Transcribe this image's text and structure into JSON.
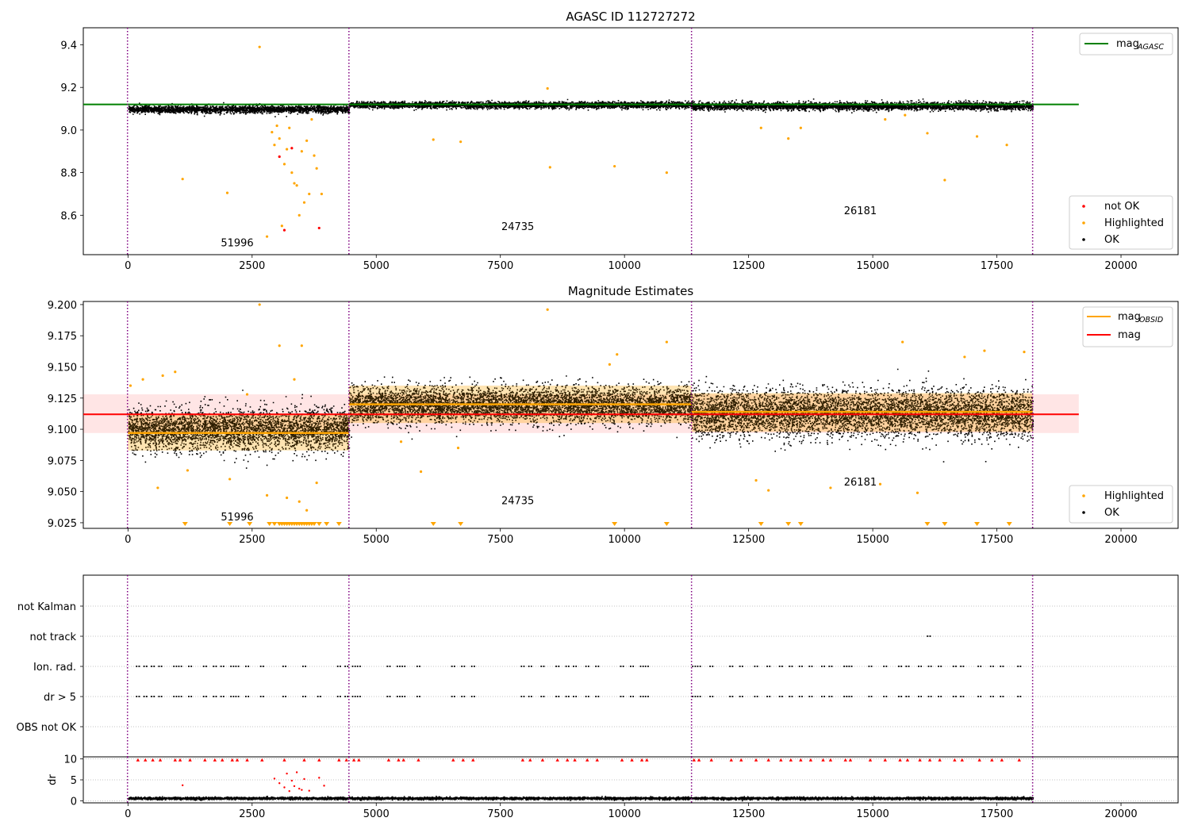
{
  "chart_data": [
    {
      "type": "scatter",
      "title": "AGASC ID 112727272",
      "xlim": [
        -900,
        21150
      ],
      "ylim": [
        8.415,
        9.48
      ],
      "xticks": [
        0,
        2500,
        5000,
        7500,
        10000,
        12500,
        15000,
        17500,
        20000
      ],
      "xtick_labels": [
        "0",
        "2500",
        "5000",
        "7500",
        "10000",
        "12500",
        "15000",
        "17500",
        "20000"
      ],
      "yticks": [
        8.6,
        8.8,
        9.0,
        9.2,
        9.4
      ],
      "ytick_labels": [
        "8.6",
        "8.8",
        "9.0",
        "9.2",
        "9.4"
      ],
      "obs_boundaries": [
        -10,
        4450,
        11350,
        18220
      ],
      "obs_labels": [
        {
          "text": "51996",
          "x": 2200,
          "y": 8.455
        },
        {
          "text": "24735",
          "x": 7850,
          "y": 8.53
        },
        {
          "text": "26181",
          "x": 14750,
          "y": 8.605
        }
      ],
      "reference_line": {
        "name": "mag_AGASC",
        "y": 9.12,
        "x_range": [
          -900,
          19150
        ],
        "color": "#008000"
      },
      "ok_bands": [
        {
          "x_range": [
            0,
            4450
          ],
          "center": 9.1,
          "spread": 0.015
        },
        {
          "x_range": [
            4450,
            11350
          ],
          "center": 9.12,
          "spread": 0.013
        },
        {
          "x_range": [
            11350,
            18220
          ],
          "center": 9.115,
          "spread": 0.016
        }
      ],
      "highlighted_points": [
        [
          1100,
          8.77
        ],
        [
          2000,
          8.705
        ],
        [
          2650,
          9.39
        ],
        [
          2800,
          8.5
        ],
        [
          2900,
          8.99
        ],
        [
          2950,
          8.93
        ],
        [
          3000,
          9.02
        ],
        [
          3050,
          8.96
        ],
        [
          3100,
          8.55
        ],
        [
          3150,
          8.84
        ],
        [
          3200,
          8.91
        ],
        [
          3250,
          9.01
        ],
        [
          3300,
          8.8
        ],
        [
          3350,
          8.75
        ],
        [
          3400,
          8.74
        ],
        [
          3450,
          8.6
        ],
        [
          3500,
          8.9
        ],
        [
          3550,
          8.66
        ],
        [
          3600,
          8.95
        ],
        [
          3650,
          8.7
        ],
        [
          3700,
          9.05
        ],
        [
          3750,
          8.88
        ],
        [
          3800,
          8.82
        ],
        [
          3900,
          8.7
        ],
        [
          6150,
          8.955
        ],
        [
          6700,
          8.945
        ],
        [
          8450,
          9.195
        ],
        [
          8500,
          8.825
        ],
        [
          9800,
          8.83
        ],
        [
          10850,
          8.8
        ],
        [
          12750,
          9.01
        ],
        [
          13300,
          8.96
        ],
        [
          13550,
          9.01
        ],
        [
          15250,
          9.05
        ],
        [
          15650,
          9.07
        ],
        [
          16100,
          8.985
        ],
        [
          16450,
          8.765
        ],
        [
          17100,
          8.97
        ],
        [
          17700,
          8.93
        ]
      ],
      "not_ok_points": [
        [
          3050,
          8.875
        ],
        [
          3150,
          8.53
        ],
        [
          3300,
          8.915
        ],
        [
          3850,
          8.54
        ]
      ],
      "legend": [
        {
          "label": "not OK",
          "color": "#ff0000"
        },
        {
          "label": "Highlighted",
          "color": "#ffa500"
        },
        {
          "label": "OK",
          "color": "#000000"
        }
      ],
      "line_legend": [
        {
          "label": "mag",
          "sub": "AGASC",
          "color": "#008000"
        }
      ]
    },
    {
      "type": "scatter",
      "title": "Magnitude Estimates",
      "xlim": [
        -900,
        21150
      ],
      "ylim": [
        9.0205,
        9.2025
      ],
      "xticks": [
        0,
        2500,
        5000,
        7500,
        10000,
        12500,
        15000,
        17500,
        20000
      ],
      "xtick_labels": [
        "0",
        "2500",
        "5000",
        "7500",
        "10000",
        "12500",
        "15000",
        "17500",
        "20000"
      ],
      "yticks": [
        9.025,
        9.05,
        9.075,
        9.1,
        9.125,
        9.15,
        9.175,
        9.2
      ],
      "ytick_labels": [
        "9.025",
        "9.050",
        "9.075",
        "9.100",
        "9.125",
        "9.150",
        "9.175",
        "9.200"
      ],
      "obs_boundaries": [
        -10,
        4450,
        11350,
        18220
      ],
      "obs_labels": [
        {
          "text": "51996",
          "x": 2200,
          "y": 9.027
        },
        {
          "text": "24735",
          "x": 7850,
          "y": 9.04
        },
        {
          "text": "26181",
          "x": 14750,
          "y": 9.055
        }
      ],
      "mag": {
        "y": 9.112,
        "band": [
          9.097,
          9.128
        ],
        "x_range": [
          -900,
          19150
        ],
        "color": "#ff0000"
      },
      "mag_obsid": [
        {
          "x_range": [
            0,
            4450
          ],
          "y": 9.097,
          "band": [
            9.083,
            9.112
          ]
        },
        {
          "x_range": [
            4450,
            11350
          ],
          "y": 9.12,
          "band": [
            9.105,
            9.135
          ]
        },
        {
          "x_range": [
            11350,
            18220
          ],
          "y": 9.114,
          "band": [
            9.098,
            9.129
          ]
        }
      ],
      "ok_bands": [
        {
          "x_range": [
            0,
            4450
          ],
          "center": 9.1,
          "spread": 0.015
        },
        {
          "x_range": [
            4450,
            11350
          ],
          "center": 9.12,
          "spread": 0.013
        },
        {
          "x_range": [
            11350,
            18220
          ],
          "center": 9.113,
          "spread": 0.017
        }
      ],
      "highlighted_points": [
        [
          50,
          9.135
        ],
        [
          300,
          9.14
        ],
        [
          600,
          9.053
        ],
        [
          700,
          9.143
        ],
        [
          950,
          9.146
        ],
        [
          1200,
          9.067
        ],
        [
          2050,
          9.06
        ],
        [
          2400,
          9.128
        ],
        [
          2650,
          9.2
        ],
        [
          2800,
          9.047
        ],
        [
          3050,
          9.167
        ],
        [
          3200,
          9.045
        ],
        [
          3350,
          9.14
        ],
        [
          3450,
          9.042
        ],
        [
          3500,
          9.167
        ],
        [
          3600,
          9.035
        ],
        [
          3800,
          9.057
        ],
        [
          5500,
          9.09
        ],
        [
          5900,
          9.066
        ],
        [
          6650,
          9.085
        ],
        [
          8450,
          9.196
        ],
        [
          9700,
          9.152
        ],
        [
          9850,
          9.16
        ],
        [
          10850,
          9.17
        ],
        [
          12650,
          9.059
        ],
        [
          12900,
          9.051
        ],
        [
          14150,
          9.053
        ],
        [
          15150,
          9.056
        ],
        [
          15600,
          9.17
        ],
        [
          15900,
          9.049
        ],
        [
          16850,
          9.158
        ],
        [
          17250,
          9.163
        ],
        [
          18050,
          9.162
        ]
      ],
      "out_of_range_x": [
        1150,
        2050,
        2450,
        2850,
        2950,
        3050,
        3100,
        3150,
        3200,
        3250,
        3300,
        3350,
        3400,
        3450,
        3500,
        3550,
        3600,
        3650,
        3700,
        3750,
        3850,
        4000,
        4250,
        6150,
        6700,
        9800,
        10850,
        12750,
        13300,
        13550,
        16100,
        16450,
        17100,
        17750
      ],
      "legend": [
        {
          "label": "Highlighted",
          "color": "#ffa500"
        },
        {
          "label": "OK",
          "color": "#000000"
        }
      ],
      "line_legend": [
        {
          "label": "mag",
          "sub": "OBSID",
          "color": "#ffa500"
        },
        {
          "label": "mag",
          "sub": "",
          "color": "#ff0000"
        }
      ]
    },
    {
      "type": "scatter",
      "title": "",
      "xlim": [
        -900,
        21150
      ],
      "flag_rows": [
        "not Kalman",
        "not track",
        "Ion. rad.",
        "dr > 5",
        "OBS not OK"
      ],
      "obs_boundaries": [
        -10,
        4450,
        11350,
        18220
      ],
      "flag_points": {
        "not track": [
          16130
        ],
        "Ion. rad.": [
          200,
          350,
          500,
          650,
          950,
          1050,
          1250,
          1550,
          1750,
          1900,
          2100,
          2200,
          2400,
          2700,
          3150,
          3550,
          4250,
          4400,
          4550,
          4650,
          5250,
          5450,
          5550,
          5850,
          6550,
          6750,
          6950,
          7950,
          8100,
          8350,
          8650,
          8850,
          9000,
          9250,
          9450,
          9950,
          10150,
          10350,
          10450,
          11400,
          11500,
          11750,
          12150,
          12350,
          12650,
          12900,
          13150,
          13350,
          13550,
          13750,
          14000,
          14150,
          14450,
          14550,
          14950,
          15250,
          15550,
          15700,
          15950,
          16150,
          16350,
          16650,
          16800,
          17150,
          17400,
          17600,
          17950
        ],
        "dr > 5": [
          200,
          350,
          500,
          650,
          950,
          1050,
          1250,
          1550,
          1750,
          1900,
          2100,
          2200,
          2400,
          2700,
          3150,
          3550,
          3850,
          4250,
          4400,
          4550,
          4650,
          5250,
          5450,
          5550,
          5850,
          6550,
          6750,
          6950,
          7950,
          8100,
          8350,
          8650,
          8850,
          9000,
          9250,
          9450,
          9950,
          10150,
          10350,
          10450,
          11400,
          11500,
          11750,
          12150,
          12350,
          12650,
          12900,
          13150,
          13350,
          13550,
          13750,
          14000,
          14150,
          14450,
          14550,
          14950,
          15250,
          15550,
          15700,
          15950,
          16150,
          16350,
          16650,
          16800,
          17150,
          17400,
          17600,
          17950
        ]
      }
    },
    {
      "type": "scatter",
      "title": "",
      "ylabel": "dr",
      "xlim": [
        -900,
        21150
      ],
      "ylim": [
        -0.5,
        10.5
      ],
      "xticks": [
        0,
        2500,
        5000,
        7500,
        10000,
        12500,
        15000,
        17500,
        20000
      ],
      "xtick_labels": [
        "0",
        "2500",
        "5000",
        "7500",
        "10000",
        "12500",
        "15000",
        "17500",
        "20000"
      ],
      "yticks": [
        0,
        5,
        10
      ],
      "ytick_labels": [
        "0",
        "5",
        "10"
      ],
      "obs_boundaries": [
        -10,
        4450,
        11350,
        18220
      ],
      "ok_band": {
        "x_range": [
          0,
          18220
        ],
        "center": 0.7,
        "spread": 0.25
      },
      "capped_x": [
        200,
        350,
        500,
        650,
        950,
        1050,
        1250,
        1550,
        1750,
        1900,
        2100,
        2200,
        2400,
        2700,
        3150,
        3550,
        3850,
        4250,
        4400,
        4550,
        4650,
        5250,
        5450,
        5550,
        5850,
        6550,
        6750,
        6950,
        7950,
        8100,
        8350,
        8650,
        8850,
        9000,
        9250,
        9450,
        9950,
        10150,
        10350,
        10450,
        11400,
        11500,
        11750,
        12150,
        12350,
        12650,
        12900,
        13150,
        13350,
        13550,
        13750,
        14000,
        14150,
        14450,
        14550,
        14950,
        15250,
        15550,
        15700,
        15950,
        16150,
        16350,
        16650,
        16800,
        17150,
        17400,
        17600,
        17950
      ],
      "red_points": [
        [
          1100,
          3.7
        ],
        [
          2950,
          5.3
        ],
        [
          3050,
          4.2
        ],
        [
          3150,
          3.2
        ],
        [
          3200,
          6.5
        ],
        [
          3250,
          2.3
        ],
        [
          3300,
          4.8
        ],
        [
          3350,
          3.5
        ],
        [
          3400,
          6.8
        ],
        [
          3450,
          2.9
        ],
        [
          3500,
          2.6
        ],
        [
          3550,
          5.2
        ],
        [
          3650,
          2.4
        ],
        [
          3850,
          5.5
        ],
        [
          3950,
          3.6
        ]
      ]
    }
  ]
}
